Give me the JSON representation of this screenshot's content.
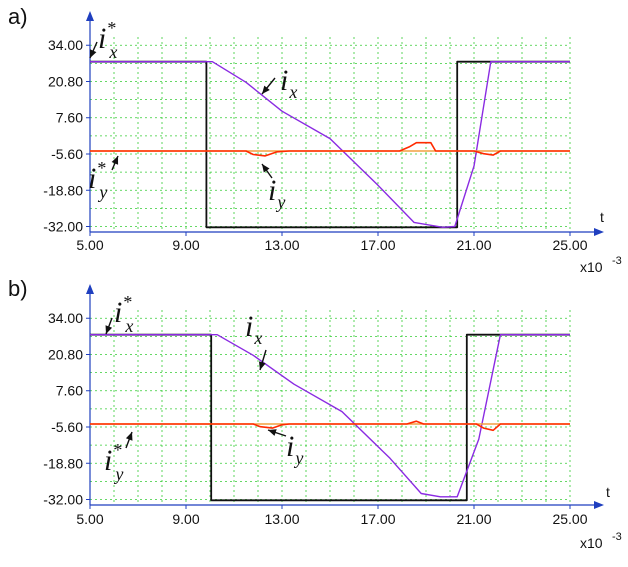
{
  "chart_data": [
    {
      "panel": "a)",
      "type": "line",
      "x_axis": {
        "label": "t",
        "multiplier": "x10",
        "exponent": "-3",
        "range": [
          5,
          25
        ],
        "ticks": [
          "5.00",
          "9.00",
          "13.00",
          "17.00",
          "21.00",
          "25.00"
        ]
      },
      "y_axis": {
        "range": [
          -34,
          37
        ],
        "ticks": [
          "34.00",
          "20.80",
          "7.60",
          "-5.60",
          "-18.80",
          "-32.00"
        ]
      },
      "grid": true,
      "annotations": {
        "ix_ref": {
          "base": "i",
          "sub": "x",
          "sup": "*"
        },
        "ix": {
          "base": "i",
          "sub": "x"
        },
        "iy": {
          "base": "i",
          "sub": "y"
        },
        "iy_ref": {
          "base": "i",
          "sub": "y",
          "sup": "*"
        }
      },
      "series": [
        {
          "name": "ix* (reference)",
          "color": "#111111",
          "points": [
            [
              5,
              28
            ],
            [
              9.85,
              28
            ],
            [
              9.85,
              -32.3
            ],
            [
              20.3,
              -32.3
            ],
            [
              20.3,
              28
            ],
            [
              25,
              28
            ]
          ]
        },
        {
          "name": "ix",
          "color": "#8a2be2",
          "points": [
            [
              5,
              28
            ],
            [
              10.1,
              28
            ],
            [
              11.5,
              20.5
            ],
            [
              13,
              10
            ],
            [
              15,
              0
            ],
            [
              17,
              -17
            ],
            [
              18.5,
              -30.5
            ],
            [
              19.7,
              -32.3
            ],
            [
              20.2,
              -32
            ],
            [
              21,
              -10
            ],
            [
              21.7,
              28
            ],
            [
              25,
              28
            ]
          ]
        },
        {
          "name": "iy*",
          "color": "#f2a141",
          "points": [
            [
              5,
              -4.5
            ],
            [
              25,
              -4.5
            ]
          ]
        },
        {
          "name": "iy",
          "color": "#ff2a00",
          "points": [
            [
              5,
              -4.5
            ],
            [
              11.5,
              -4.5
            ],
            [
              11.8,
              -5.8
            ],
            [
              12.3,
              -6.3
            ],
            [
              12.8,
              -4.8
            ],
            [
              13.3,
              -4.5
            ],
            [
              17.9,
              -4.5
            ],
            [
              18.3,
              -3
            ],
            [
              18.6,
              -1.5
            ],
            [
              19.2,
              -1.5
            ],
            [
              19.4,
              -4.5
            ],
            [
              21,
              -4.5
            ],
            [
              21.4,
              -5.5
            ],
            [
              21.8,
              -6
            ],
            [
              22.1,
              -4.5
            ],
            [
              25,
              -4.5
            ]
          ]
        }
      ]
    },
    {
      "panel": "b)",
      "type": "line",
      "x_axis": {
        "label": "t",
        "multiplier": "x10",
        "exponent": "-3",
        "range": [
          5,
          25
        ],
        "ticks": [
          "5.00",
          "9.00",
          "13.00",
          "17.00",
          "21.00",
          "25.00"
        ]
      },
      "y_axis": {
        "range": [
          -34,
          37
        ],
        "ticks": [
          "34.00",
          "20.80",
          "7.60",
          "-5.60",
          "-18.80",
          "-32.00"
        ]
      },
      "grid": true,
      "annotations": {
        "ix_ref": {
          "base": "i",
          "sub": "x",
          "sup": "*"
        },
        "ix": {
          "base": "i",
          "sub": "x"
        },
        "iy": {
          "base": "i",
          "sub": "y"
        },
        "iy_ref": {
          "base": "i",
          "sub": "y",
          "sup": "*"
        }
      },
      "series": [
        {
          "name": "ix* (reference)",
          "color": "#111111",
          "points": [
            [
              5,
              28
            ],
            [
              10.05,
              28
            ],
            [
              10.05,
              -32.3
            ],
            [
              20.7,
              -32.3
            ],
            [
              20.7,
              28
            ],
            [
              25,
              28
            ]
          ]
        },
        {
          "name": "ix",
          "color": "#8a2be2",
          "points": [
            [
              5,
              28
            ],
            [
              10.3,
              28
            ],
            [
              11.8,
              20.5
            ],
            [
              13.5,
              10
            ],
            [
              15.5,
              0
            ],
            [
              17.5,
              -17
            ],
            [
              18.8,
              -29.8
            ],
            [
              19.6,
              -31
            ],
            [
              20.3,
              -31
            ],
            [
              21.2,
              -10
            ],
            [
              22.1,
              28
            ],
            [
              25,
              28
            ]
          ]
        },
        {
          "name": "iy*",
          "color": "#f2a141",
          "points": [
            [
              5,
              -4.5
            ],
            [
              25,
              -4.5
            ]
          ]
        },
        {
          "name": "iy",
          "color": "#ff2a00",
          "points": [
            [
              5,
              -4.5
            ],
            [
              11.8,
              -4.5
            ],
            [
              12.1,
              -5.5
            ],
            [
              12.6,
              -6
            ],
            [
              13.0,
              -4.8
            ],
            [
              13.3,
              -4.5
            ],
            [
              18.2,
              -4.5
            ],
            [
              18.6,
              -3.5
            ],
            [
              18.9,
              -4.5
            ],
            [
              21.1,
              -4.5
            ],
            [
              21.4,
              -6
            ],
            [
              21.8,
              -6.8
            ],
            [
              22.1,
              -4.5
            ],
            [
              25,
              -4.5
            ]
          ]
        }
      ]
    }
  ]
}
